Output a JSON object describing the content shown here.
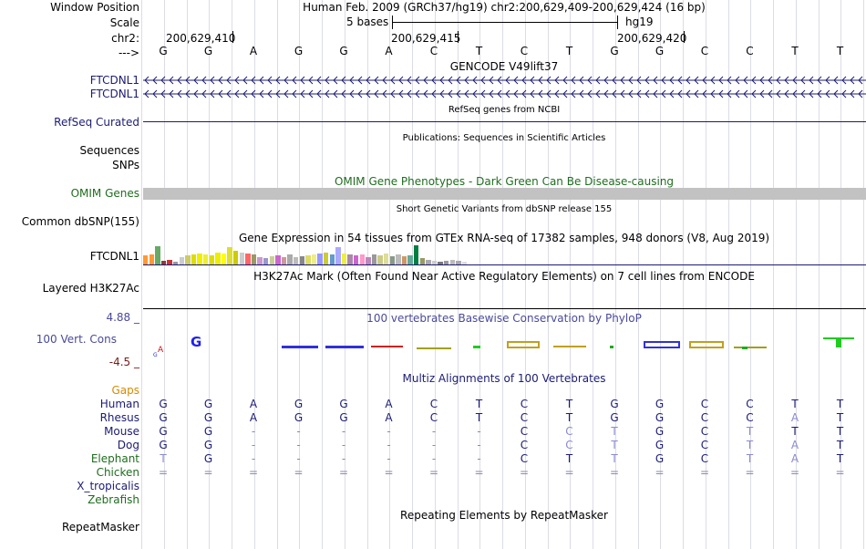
{
  "header": {
    "window_position_label": "Window Position",
    "window_title": "Human Feb. 2009 (GRCh37/hg19)   chr2:200,629,409-200,629,424 (16 bp)",
    "scale_label": "Scale",
    "scale_text": "5 bases",
    "scale_assembly": "hg19",
    "chrom_label": "chr2:",
    "strand_label": "--->",
    "positions": [
      "200,629,410",
      "200,629,415",
      "200,629,420"
    ]
  },
  "bases": [
    "G",
    "G",
    "A",
    "G",
    "G",
    "A",
    "C",
    "T",
    "C",
    "T",
    "G",
    "G",
    "C",
    "C",
    "T",
    "T"
  ],
  "tracks": {
    "gencode": {
      "title": "GENCODE V49lift37",
      "items": [
        "FTCDNL1",
        "FTCDNL1"
      ]
    },
    "refseq": {
      "title": "RefSeq genes from NCBI",
      "label": "RefSeq Curated"
    },
    "publications": {
      "title": "Publications: Sequences in Scientific Articles",
      "label": "Sequences"
    },
    "snps_label": "SNPs",
    "omim": {
      "title": "OMIM Gene Phenotypes - Dark Green Can Be Disease-causing",
      "label": "OMIM Genes"
    },
    "dbsnp": {
      "title": "Short Genetic Variants from dbSNP release 155",
      "label": "Common dbSNP(155)"
    },
    "gtex": {
      "title": "Gene Expression in 54 tissues from GTEx RNA-seq of 17382 samples, 948 donors (V8, Aug 2019)",
      "label": "FTCDNL1",
      "bar_colors": [
        "#ff9933",
        "#ff9933",
        "#66aa66",
        "#993333",
        "#cc3333",
        "#999999",
        "#cccccc",
        "#cccc66",
        "#dddd00",
        "#eeee00",
        "#eeee33",
        "#dddd00",
        "#eeee00",
        "#ffff00",
        "#dddd33",
        "#cccc00",
        "#cccccc",
        "#ff6666",
        "#999966",
        "#cc99cc",
        "#9999cc",
        "#cccc99",
        "#cc66cc",
        "#cc9999",
        "#aaaaaa",
        "#bbbbbb",
        "#888888",
        "#dddd66",
        "#eeee88",
        "#9999ff",
        "#cccc33",
        "#6699cc",
        "#aaaaff",
        "#eeee44",
        "#aa88aa",
        "#cc66cc",
        "#ff99cc",
        "#bb88bb",
        "#999999",
        "#cccc88",
        "#dddd99",
        "#889988",
        "#bbbbbb",
        "#cc9966",
        "#66aa99",
        "#008040",
        "#999966",
        "#aaaaaa",
        "#cccccc",
        "#777777",
        "#999999",
        "#bbbbbb",
        "#aaaaaa",
        "#dddddd"
      ],
      "bar_heights": [
        0.45,
        0.5,
        0.9,
        0.2,
        0.25,
        0.15,
        0.35,
        0.45,
        0.5,
        0.55,
        0.5,
        0.45,
        0.6,
        0.55,
        0.85,
        0.7,
        0.6,
        0.55,
        0.5,
        0.35,
        0.3,
        0.4,
        0.45,
        0.35,
        0.5,
        0.35,
        0.4,
        0.45,
        0.5,
        0.55,
        0.6,
        0.5,
        0.85,
        0.55,
        0.5,
        0.45,
        0.5,
        0.35,
        0.5,
        0.45,
        0.55,
        0.4,
        0.5,
        0.4,
        0.45,
        0.95,
        0.3,
        0.25,
        0.2,
        0.15,
        0.2,
        0.25,
        0.2,
        0.15
      ]
    },
    "h3k27ac": {
      "title": "H3K27Ac Mark (Often Found Near Active Regulatory Elements) on 7 cell lines from ENCODE",
      "label": "Layered H3K27Ac"
    },
    "phylop": {
      "title": "100 vertebrates Basewise Conservation by PhyloP",
      "label": "100 Vert. Cons",
      "max": "4.88 _",
      "min": "-4.5 _"
    },
    "multiz": {
      "title": "Multiz Alignments of 100 Vertebrates",
      "gaps_label": "Gaps",
      "species": [
        {
          "name": "Human",
          "seq": [
            "G",
            "G",
            "A",
            "G",
            "G",
            "A",
            "C",
            "T",
            "C",
            "T",
            "G",
            "G",
            "C",
            "C",
            "T",
            "T"
          ]
        },
        {
          "name": "Rhesus",
          "seq": [
            "G",
            "G",
            "A",
            "G",
            "G",
            "A",
            "C",
            "T",
            "C",
            "T",
            "G",
            "G",
            "C",
            "C",
            "A",
            "T"
          ]
        },
        {
          "name": "Mouse",
          "seq": [
            "G",
            "G",
            "-",
            "-",
            "-",
            "-",
            "-",
            "-",
            "C",
            "C",
            "T",
            "G",
            "C",
            "T",
            "T",
            "T"
          ]
        },
        {
          "name": "Dog",
          "seq": [
            "G",
            "G",
            "-",
            "-",
            "-",
            "-",
            "-",
            "-",
            "C",
            "C",
            "T",
            "G",
            "C",
            "T",
            "A",
            "T"
          ]
        },
        {
          "name": "Elephant",
          "seq": [
            "T",
            "G",
            "-",
            "-",
            "-",
            "-",
            "-",
            "-",
            "C",
            "T",
            "T",
            "G",
            "C",
            "T",
            "A",
            "T"
          ]
        },
        {
          "name": "Chicken",
          "seq": [
            "=",
            "=",
            "=",
            "=",
            "=",
            "=",
            "=",
            "=",
            "=",
            "=",
            "=",
            "=",
            "=",
            "=",
            "=",
            "="
          ]
        },
        {
          "name": "X_tropicalis",
          "seq": []
        },
        {
          "name": "Zebrafish",
          "seq": []
        }
      ]
    },
    "repeatmasker": {
      "title": "Repeating Elements by RepeatMasker",
      "label": "RepeatMasker"
    }
  }
}
